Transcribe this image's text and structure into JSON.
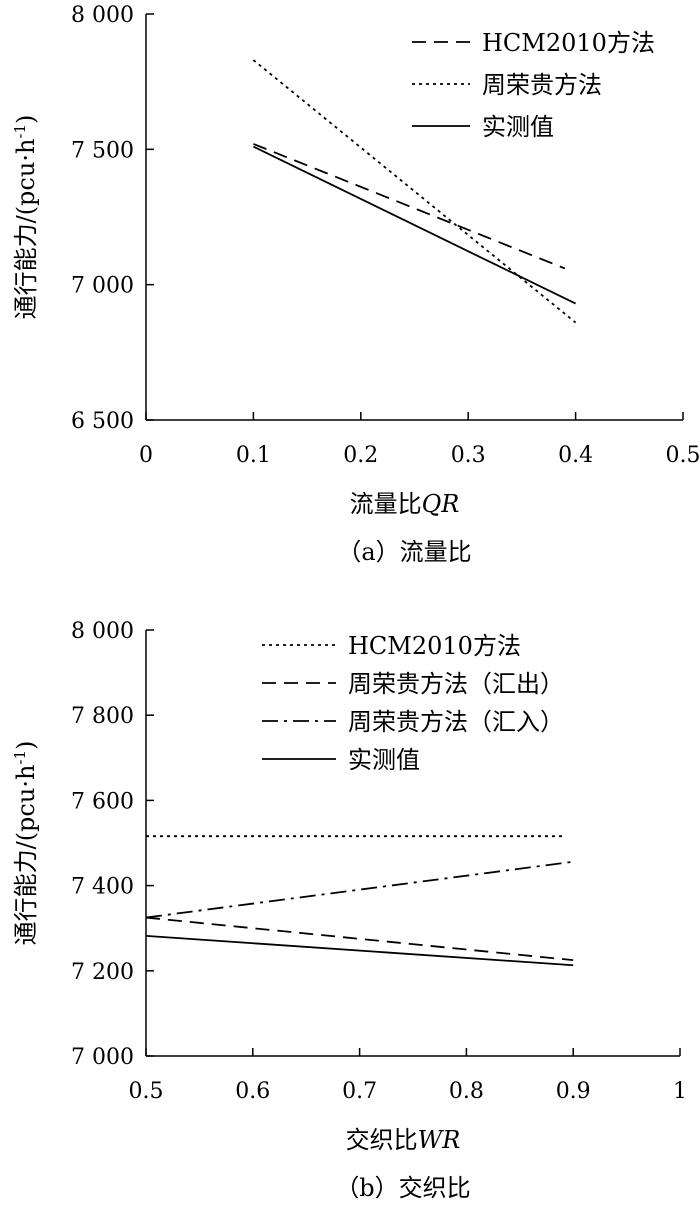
{
  "chart_data": [
    {
      "type": "line",
      "caption": "（a）流量比",
      "xlabel": "流量比",
      "xlabel_var": "QR",
      "ylabel": "通行能力/(pcu·h",
      "ylabel_sup": "-1",
      "ylabel_tail": ")",
      "xlim": [
        0,
        0.5
      ],
      "ylim": [
        6500,
        8000
      ],
      "xticks": [
        0,
        0.1,
        0.2,
        0.3,
        0.4,
        0.5
      ],
      "xtick_labels": [
        "0",
        "0.1",
        "0.2",
        "0.3",
        "0.4",
        "0.5"
      ],
      "yticks": [
        6500,
        7000,
        7500,
        8000
      ],
      "ytick_labels": [
        "6 500",
        "7 000",
        "7 500",
        "8 000"
      ],
      "legend_position": "top-right",
      "series": [
        {
          "name": "HCM2010方法",
          "style": "dashed",
          "x": [
            0.1,
            0.39
          ],
          "y": [
            7520,
            7060
          ]
        },
        {
          "name": "周荣贵方法",
          "style": "dotted",
          "x": [
            0.1,
            0.4
          ],
          "y": [
            7830,
            6860
          ]
        },
        {
          "name": "实测值",
          "style": "solid",
          "x": [
            0.1,
            0.4
          ],
          "y": [
            7510,
            6930
          ]
        }
      ]
    },
    {
      "type": "line",
      "caption": "（b）交织比",
      "xlabel": "交织比",
      "xlabel_var": "WR",
      "ylabel": "通行能力/(pcu·h",
      "ylabel_sup": "-1",
      "ylabel_tail": ")",
      "xlim": [
        0.5,
        1
      ],
      "ylim": [
        7000,
        8000
      ],
      "xticks": [
        0.5,
        0.6,
        0.7,
        0.8,
        0.9,
        1
      ],
      "xtick_labels": [
        "0.5",
        "0.6",
        "0.7",
        "0.8",
        "0.9",
        "1"
      ],
      "yticks": [
        7000,
        7200,
        7400,
        7600,
        7800,
        8000
      ],
      "ytick_labels": [
        "7 000",
        "7 200",
        "7 400",
        "7 600",
        "7 800",
        "8 000"
      ],
      "legend_position": "top-right",
      "series": [
        {
          "name": "HCM2010方法",
          "style": "dotted",
          "x": [
            0.5,
            0.89
          ],
          "y": [
            7516,
            7516
          ]
        },
        {
          "name": "周荣贵方法（汇出）",
          "style": "dashed",
          "x": [
            0.5,
            0.9
          ],
          "y": [
            7325,
            7225
          ]
        },
        {
          "name": "周荣贵方法（汇入）",
          "style": "dashdot",
          "x": [
            0.5,
            0.9
          ],
          "y": [
            7325,
            7456
          ]
        },
        {
          "name": "实测值",
          "style": "solid",
          "x": [
            0.5,
            0.9
          ],
          "y": [
            7282,
            7213
          ]
        }
      ]
    }
  ]
}
